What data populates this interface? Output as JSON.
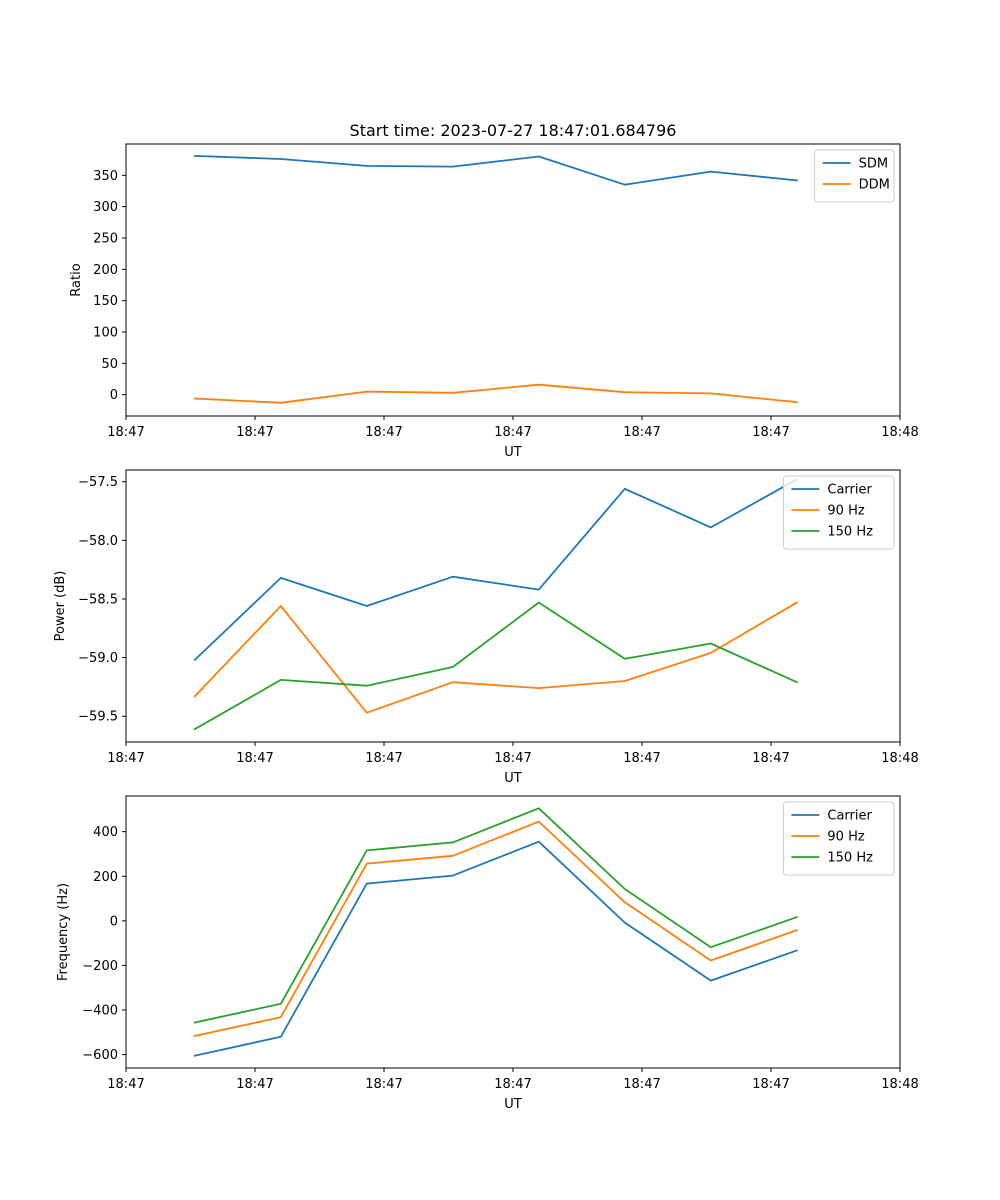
{
  "chart_data": [
    {
      "type": "line",
      "title": "Start time: 2023-07-27 18:47:01.684796",
      "xlabel": "UT",
      "ylabel": "Ratio",
      "x": [
        1,
        2,
        3,
        4,
        5,
        6,
        7,
        8
      ],
      "xlim": [
        0.2,
        9.2
      ],
      "xtick_positions": [
        0.2,
        1.7,
        3.2,
        4.7,
        6.2,
        7.7,
        9.2
      ],
      "xtick_labels": [
        "18:47",
        "18:47",
        "18:47",
        "18:47",
        "18:47",
        "18:47",
        "18:48"
      ],
      "ylim": [
        -34,
        400
      ],
      "yticks": [
        0,
        50,
        100,
        150,
        200,
        250,
        300,
        350
      ],
      "legend_position": "upper-right",
      "series": [
        {
          "name": "SDM",
          "color": "#1f77b4",
          "values": [
            381,
            376,
            365,
            364,
            380,
            335,
            356,
            342
          ]
        },
        {
          "name": "DDM",
          "color": "#ff7f0e",
          "values": [
            -6,
            -13,
            5,
            3,
            16,
            4,
            2,
            -12
          ]
        }
      ]
    },
    {
      "type": "line",
      "title": "",
      "xlabel": "UT",
      "ylabel": "Power (dB)",
      "x": [
        1,
        2,
        3,
        4,
        5,
        6,
        7,
        8
      ],
      "xlim": [
        0.2,
        9.2
      ],
      "xtick_positions": [
        0.2,
        1.7,
        3.2,
        4.7,
        6.2,
        7.7,
        9.2
      ],
      "xtick_labels": [
        "18:47",
        "18:47",
        "18:47",
        "18:47",
        "18:47",
        "18:47",
        "18:48"
      ],
      "ylim": [
        -59.72,
        -57.4
      ],
      "yticks": [
        -59.5,
        -59.0,
        -58.5,
        -58.0,
        -57.5
      ],
      "ytick_labels": [
        "−59.5",
        "−59.0",
        "−58.5",
        "−58.0",
        "−57.5"
      ],
      "legend_position": "upper-right",
      "series": [
        {
          "name": "Carrier",
          "color": "#1f77b4",
          "values": [
            -59.02,
            -58.32,
            -58.56,
            -58.31,
            -58.42,
            -57.56,
            -57.89,
            -57.48
          ]
        },
        {
          "name": "90 Hz",
          "color": "#ff7f0e",
          "values": [
            -59.33,
            -58.56,
            -59.47,
            -59.21,
            -59.26,
            -59.2,
            -58.96,
            -58.53
          ]
        },
        {
          "name": "150 Hz",
          "color": "#2ca02c",
          "values": [
            -59.61,
            -59.19,
            -59.24,
            -59.08,
            -58.53,
            -59.01,
            -58.88,
            -59.21
          ]
        }
      ]
    },
    {
      "type": "line",
      "title": "",
      "xlabel": "UT",
      "ylabel": "Frequency (Hz)",
      "x": [
        1,
        2,
        3,
        4,
        5,
        6,
        7,
        8
      ],
      "xlim": [
        0.2,
        9.2
      ],
      "xtick_positions": [
        0.2,
        1.7,
        3.2,
        4.7,
        6.2,
        7.7,
        9.2
      ],
      "xtick_labels": [
        "18:47",
        "18:47",
        "18:47",
        "18:47",
        "18:47",
        "18:47",
        "18:48"
      ],
      "ylim": [
        -660,
        560
      ],
      "yticks": [
        -600,
        -400,
        -200,
        0,
        200,
        400
      ],
      "ytick_labels": [
        "−600",
        "−400",
        "−200",
        "0",
        "200",
        "400"
      ],
      "legend_position": "upper-right",
      "series": [
        {
          "name": "Carrier",
          "color": "#1f77b4",
          "values": [
            -605,
            -520,
            167,
            203,
            355,
            -8,
            -268,
            -133
          ]
        },
        {
          "name": "90 Hz",
          "color": "#ff7f0e",
          "values": [
            -516,
            -432,
            257,
            292,
            445,
            83,
            -178,
            -42
          ]
        },
        {
          "name": "150 Hz",
          "color": "#2ca02c",
          "values": [
            -456,
            -372,
            316,
            352,
            505,
            143,
            -118,
            17
          ]
        }
      ]
    }
  ]
}
